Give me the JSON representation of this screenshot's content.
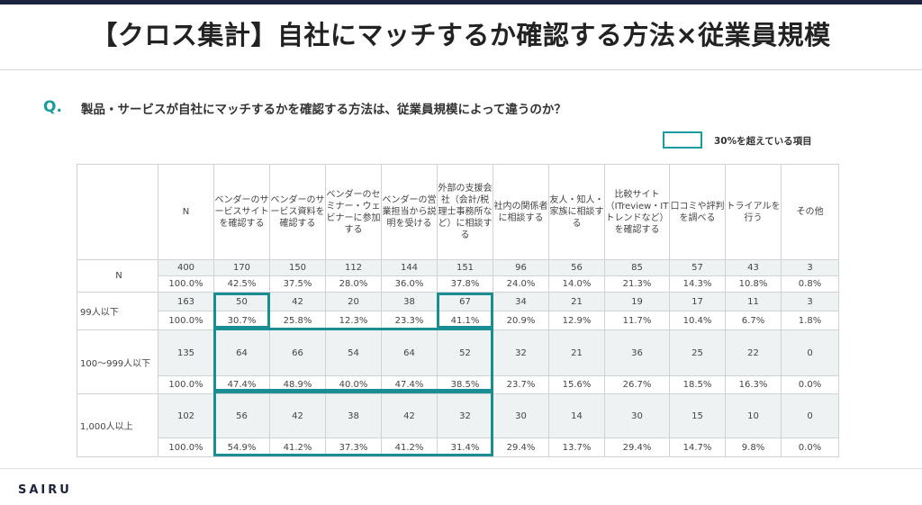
{
  "title": "【クロス集計】自社にマッチするか確認する方法×従業員規模",
  "question": {
    "mark": "Q.",
    "text": "製品・サービスが自社にマッチするかを確認する方法は、従業員規模によって違うのか？"
  },
  "legend": {
    "label": "30%を超えている項目"
  },
  "table": {
    "headers": [
      "N",
      "ベンダーのサービスサイトを確認する",
      "ベンダーのサービス資料を確認する",
      "ベンダーのセミナー・ウェビナーに参加する",
      "ベンダーの営業担当から説明を受ける",
      "外部の支援会社（会計/税理士事務所など）に相談する",
      "社内の関係者に相談する",
      "友人・知人・家族に相談する",
      "比較サイト（ITreview・ITトレンドなど）を確認する",
      "口コミや評判を調べる",
      "トライアルを行う",
      "その他"
    ],
    "rows": [
      {
        "label": "N",
        "counts": [
          "400",
          "170",
          "150",
          "112",
          "144",
          "151",
          "96",
          "56",
          "85",
          "57",
          "43",
          "3"
        ],
        "pcts": [
          "100.0%",
          "42.5%",
          "37.5%",
          "28.0%",
          "36.0%",
          "37.8%",
          "24.0%",
          "14.0%",
          "21.3%",
          "14.3%",
          "10.8%",
          "0.8%"
        ]
      },
      {
        "label": "99人以下",
        "counts": [
          "163",
          "50",
          "42",
          "20",
          "38",
          "67",
          "34",
          "21",
          "19",
          "17",
          "11",
          "3"
        ],
        "pcts": [
          "100.0%",
          "30.7%",
          "25.8%",
          "12.3%",
          "23.3%",
          "41.1%",
          "20.9%",
          "12.9%",
          "11.7%",
          "10.4%",
          "6.7%",
          "1.8%"
        ]
      },
      {
        "label": "100～999人以下",
        "counts": [
          "135",
          "64",
          "66",
          "54",
          "64",
          "52",
          "32",
          "21",
          "36",
          "25",
          "22",
          "0"
        ],
        "pcts": [
          "100.0%",
          "47.4%",
          "48.9%",
          "40.0%",
          "47.4%",
          "38.5%",
          "23.7%",
          "15.6%",
          "26.7%",
          "18.5%",
          "16.3%",
          "0.0%"
        ]
      },
      {
        "label": "1,000人以上",
        "counts": [
          "102",
          "56",
          "42",
          "38",
          "42",
          "32",
          "30",
          "14",
          "30",
          "15",
          "10",
          "0"
        ],
        "pcts": [
          "100.0%",
          "54.9%",
          "41.2%",
          "37.3%",
          "41.2%",
          "31.4%",
          "29.4%",
          "13.7%",
          "29.4%",
          "14.7%",
          "9.8%",
          "0.0%"
        ]
      }
    ]
  },
  "footer": {
    "logo": "SAIRU"
  },
  "colors": {
    "accent": "#1a9ba0",
    "dark": "#1c2340"
  }
}
